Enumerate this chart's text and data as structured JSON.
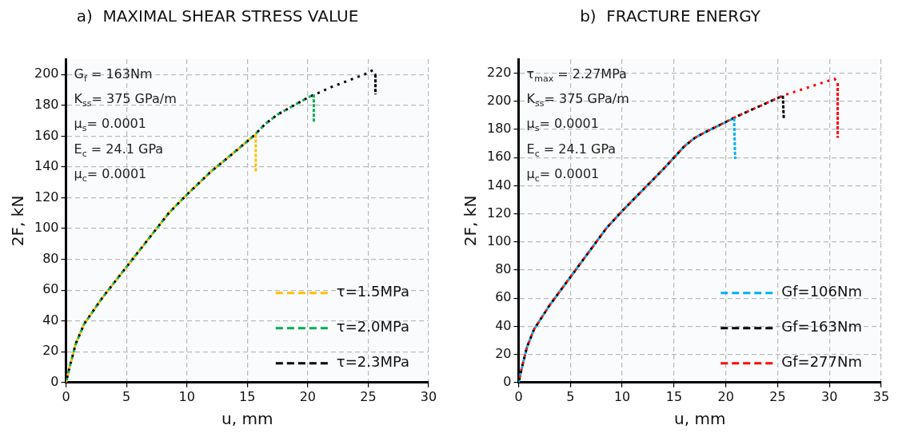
{
  "chart_data": [
    {
      "type": "line",
      "title": "a)  MAXIMAL SHEAR STRESS VALUE",
      "xlabel": "u, mm",
      "ylabel": "2F, kN",
      "xlim": [
        0,
        30
      ],
      "xticks": [
        0,
        5,
        10,
        15,
        20,
        25,
        30
      ],
      "ylim": [
        0,
        210
      ],
      "yticks": [
        0,
        20,
        40,
        60,
        80,
        100,
        120,
        140,
        160,
        180,
        200
      ],
      "grid": true,
      "legend": "bottom right",
      "marker": "none",
      "line_style": "dashed",
      "annotations": [
        "G$_{f}$ = 163Nm",
        "K$_{ss}$= 375 GPa/m",
        "μ$_{s}$= 0.0001",
        "E$_{c}$ = 24.1 GPa",
        "μ$_{c}$= 0.0001"
      ],
      "series": [
        {
          "name": "τ=1.5MPa",
          "color": "#ffc000",
          "x": [
            0,
            0.3,
            0.8,
            1.5,
            3,
            5,
            7,
            8.5,
            10,
            12,
            14,
            15.5,
            15.7,
            15.7
          ],
          "values": [
            0,
            10,
            25,
            38,
            55,
            75,
            95,
            110,
            122,
            137,
            150,
            160,
            161,
            137
          ]
        },
        {
          "name": "τ=2.0MPa",
          "color": "#00b050",
          "x": [
            0,
            0.3,
            0.8,
            1.5,
            3,
            5,
            7,
            8.5,
            10,
            12,
            14,
            15.5,
            16.5,
            17.5,
            20,
            20.5,
            20.5
          ],
          "values": [
            0,
            10,
            25,
            38,
            55,
            75,
            95,
            110,
            122,
            137,
            150,
            160,
            168,
            174,
            185,
            187,
            169
          ]
        },
        {
          "name": "τ=2.3MPa",
          "color": "#000000",
          "x": [
            0,
            0.3,
            0.8,
            1.5,
            3,
            5,
            7,
            8.5,
            10,
            12,
            14,
            15.5,
            16.5,
            17.5,
            20,
            22,
            25,
            25.4,
            25.6,
            25.6
          ],
          "values": [
            0,
            10,
            25,
            38,
            55,
            75,
            95,
            110,
            122,
            137,
            150,
            160,
            168,
            174,
            185,
            192,
            201,
            203,
            200,
            187
          ]
        }
      ]
    },
    {
      "type": "line",
      "title": "b)  FRACTURE ENERGY",
      "xlabel": "u, mm",
      "ylabel": "2F, kN",
      "xlim": [
        0,
        35
      ],
      "xticks": [
        0,
        5,
        10,
        15,
        20,
        25,
        30,
        35
      ],
      "ylim": [
        0,
        230
      ],
      "yticks": [
        0,
        20,
        40,
        60,
        80,
        100,
        120,
        140,
        160,
        180,
        200,
        220
      ],
      "grid": true,
      "legend": "bottom right",
      "marker": "none",
      "line_style": "dashed",
      "annotations": [
        "τ$_{max}$ = 2.27MPa",
        "K$_{ss}$= 375 GPa/m",
        "μ$_{s}$= 0.0001",
        "E$_{c}$ = 24.1 GPa",
        "μ$_{c}$= 0.0001"
      ],
      "series": [
        {
          "name": "Gf=106Nm",
          "color": "#00b0f0",
          "x": [
            0,
            0.3,
            0.8,
            1.5,
            3,
            5,
            7,
            8.5,
            10,
            12,
            14,
            16,
            17,
            18,
            20.8,
            20.9
          ],
          "values": [
            0,
            10,
            25,
            38,
            55,
            75,
            95,
            110,
            122,
            137,
            152,
            168,
            174,
            178,
            188,
            159
          ]
        },
        {
          "name": "Gf=163Nm",
          "color": "#000000",
          "x": [
            0,
            0.3,
            0.8,
            1.5,
            3,
            5,
            7,
            8.5,
            10,
            12,
            14,
            16,
            17,
            18,
            21,
            25.5,
            25.6
          ],
          "values": [
            0,
            10,
            25,
            38,
            55,
            75,
            95,
            110,
            122,
            137,
            152,
            168,
            174,
            178,
            189,
            204,
            187
          ]
        },
        {
          "name": "Gf=277Nm",
          "color": "#ff0000",
          "x": [
            0,
            0.3,
            0.8,
            1.5,
            3,
            5,
            7,
            8.5,
            10,
            12,
            14,
            16,
            17,
            18,
            21,
            25.5,
            28,
            30.5,
            30.8,
            30.8
          ],
          "values": [
            0,
            10,
            25,
            38,
            55,
            75,
            95,
            110,
            122,
            137,
            152,
            168,
            174,
            178,
            189,
            204,
            210,
            216,
            213,
            174
          ]
        }
      ]
    }
  ]
}
